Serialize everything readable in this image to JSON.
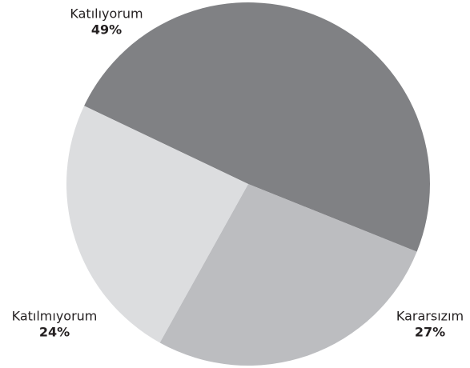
{
  "chart_data": {
    "type": "pie",
    "categories": [
      "Katılıyorum",
      "Kararsızım",
      "Katılmıyorum"
    ],
    "values": [
      49,
      27,
      24
    ],
    "value_labels": [
      "49%",
      "27%",
      "24%"
    ],
    "colors": [
      "#808184",
      "#bcbdc0",
      "#dcdddf"
    ]
  }
}
